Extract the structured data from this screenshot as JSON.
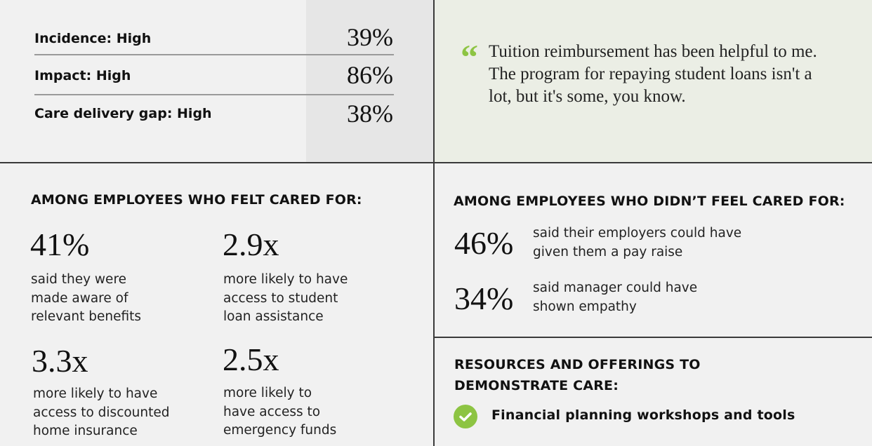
{
  "metrics": [
    {
      "label": "Incidence: High",
      "value": "39%"
    },
    {
      "label": "Impact: High",
      "value": "86%"
    },
    {
      "label": "Care delivery gap: High",
      "value": "38%"
    }
  ],
  "quote": {
    "icon": "quote-mark-icon",
    "text": "Tuition reimbursement has been helpful to me. The program for repaying student loans isn't a lot, but it's some, you know.",
    "mark": "“"
  },
  "cared": {
    "heading": "AMONG EMPLOYEES WHO FELT CARED FOR:",
    "stats": [
      {
        "value": "41%",
        "desc": "said they were made aware of relevant benefits"
      },
      {
        "value": "2.9x",
        "desc": "more likely to have access to student loan assistance"
      },
      {
        "value": "3.3x",
        "desc": "more likely to have access to discounted home insurance"
      },
      {
        "value": "2.5x",
        "desc": "more likely to have access to emergency funds"
      }
    ]
  },
  "not_cared": {
    "heading": "AMONG EMPLOYEES WHO DIDN’T FEEL CARED FOR:",
    "stats": [
      {
        "value": "46%",
        "desc": "said their employers could have given them a pay raise"
      },
      {
        "value": "34%",
        "desc": "said manager could have shown empathy"
      }
    ]
  },
  "resources": {
    "heading": "RESOURCES AND OFFERINGS TO DEMONSTRATE CARE:",
    "items": [
      {
        "label": "Financial planning workshops and tools",
        "icon": "check-circle-icon"
      }
    ]
  },
  "colors": {
    "accent_green": "#8dc443",
    "background": "#f1f1f1",
    "quote_panel": "#ebeee5"
  }
}
